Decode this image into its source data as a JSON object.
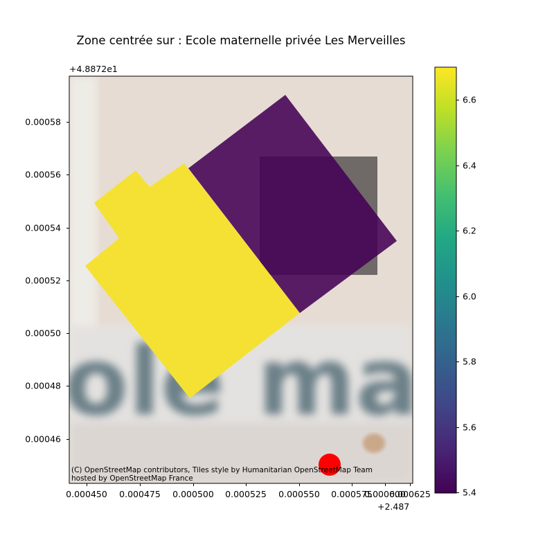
{
  "title": "Zone centrée sur : Ecole maternelle privée Les Merveilles",
  "y_offset_label": "+4.8872e1",
  "x_offset_label": "+2.487",
  "attribution": [
    "(C) OpenStreetMap contributors, Tiles style by Humanitarian OpenStreetMap Team",
    "hosted by OpenStreetMap France"
  ],
  "basemap_text": "ole mater",
  "chart_data": {
    "type": "map",
    "x_ticks": [
      "0.000450",
      "0.000475",
      "0.000500",
      "0.000525",
      "0.000550",
      "0.000575",
      "0.000600",
      "0.000625"
    ],
    "y_ticks": [
      "0.00058",
      "0.00056",
      "0.00054",
      "0.00052",
      "0.00050",
      "0.00048",
      "0.00046"
    ],
    "colorbar": {
      "colormap": "viridis",
      "range": [
        5.4,
        6.7
      ],
      "ticks": [
        "6.6",
        "6.4",
        "6.2",
        "6.0",
        "5.8",
        "5.6",
        "5.4"
      ]
    },
    "polygons": [
      {
        "value": 6.7,
        "color": "#f5e134"
      },
      {
        "value": 5.4,
        "color": "#440154"
      }
    ],
    "marker": {
      "color": "#ff0000"
    }
  }
}
